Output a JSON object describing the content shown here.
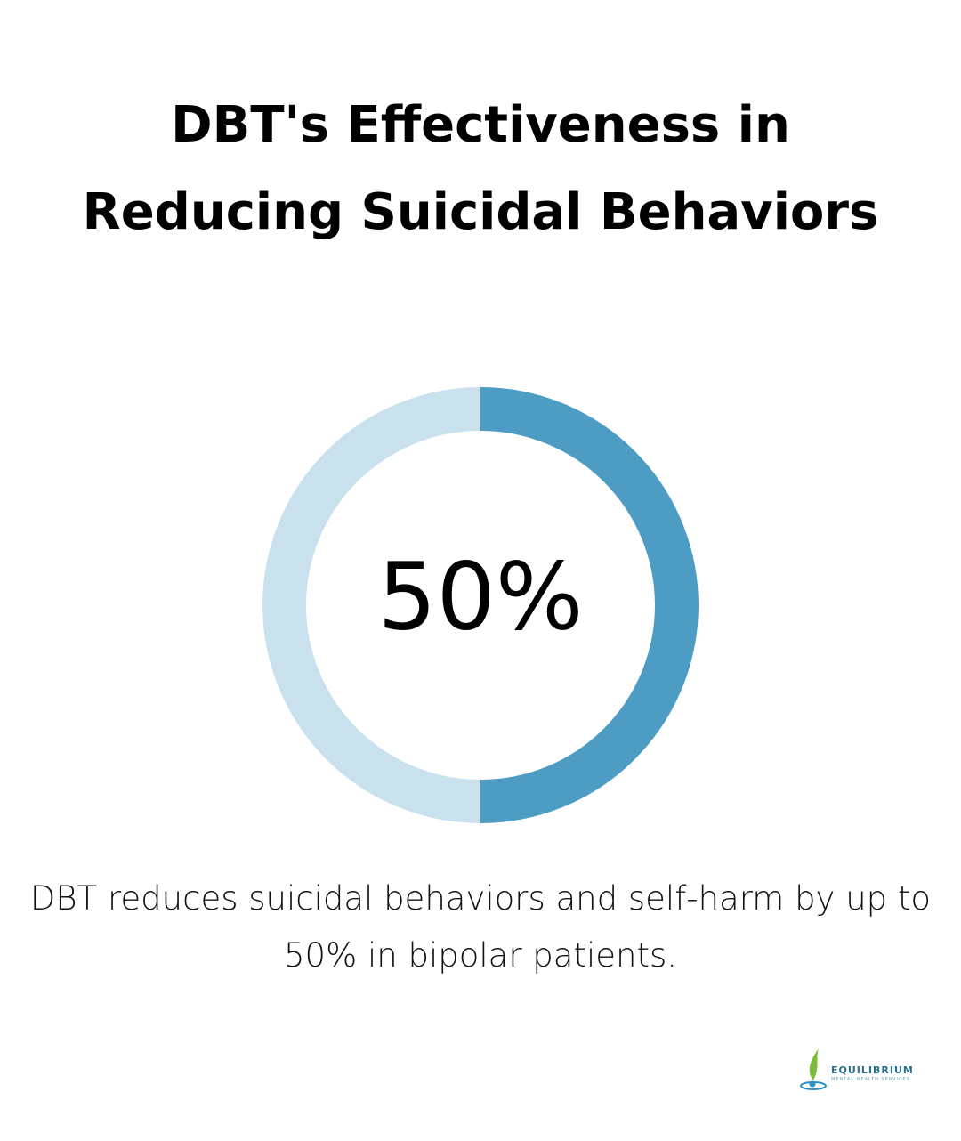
{
  "chart_data": {
    "type": "donut",
    "title": "DBT's Effectiveness in Reducing Suicidal Behaviors",
    "values": [
      50,
      50
    ],
    "value_labels": [
      "50%",
      null
    ],
    "colors": [
      "#4d9cc4",
      "#c9e1ed"
    ],
    "description": "DBT reduces suicidal behaviors and self-harm by up to 50% in bipolar patients."
  },
  "logo": {
    "name": "EQUILIBRIUM",
    "subtitle": "MENTAL HEALTH SERVICES"
  }
}
